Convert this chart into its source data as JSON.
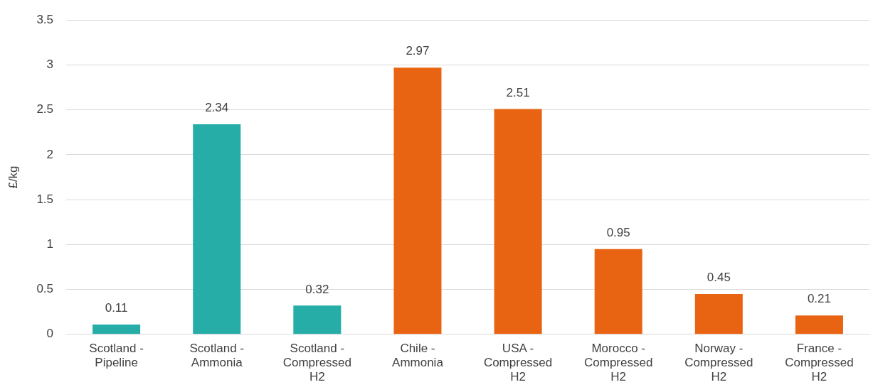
{
  "chart_data": {
    "type": "bar",
    "ylabel": "£/kg",
    "categories": [
      "Scotland - Pipeline",
      "Scotland - Ammonia",
      "Scotland - Compressed H2",
      "Chile - Ammonia",
      "USA - Compressed H2",
      "Morocco - Compressed H2",
      "Norway - Compressed H2",
      "France - Compressed H2"
    ],
    "values": [
      0.11,
      2.34,
      0.32,
      2.97,
      2.51,
      0.95,
      0.45,
      0.21
    ],
    "colors": [
      "#26ada8",
      "#26ada8",
      "#26ada8",
      "#e86412",
      "#e86412",
      "#e86412",
      "#e86412",
      "#e86412"
    ],
    "ylim": [
      0,
      3.5
    ],
    "yticks": [
      0,
      0.5,
      1,
      1.5,
      2,
      2.5,
      3,
      3.5
    ],
    "grid": "y",
    "data_labels": true,
    "legend": false
  }
}
